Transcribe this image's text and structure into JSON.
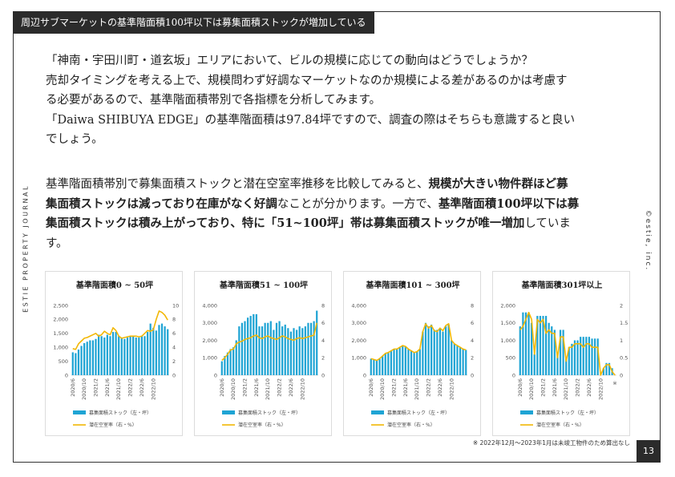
{
  "header": {
    "title": "周辺サブマーケットの基準階面積100坪以下は募集面積ストックが増加している"
  },
  "side": {
    "left": "ESTIE PROPERTY JOURNAL",
    "right": "©estie, inc."
  },
  "body": {
    "p1_lines": [
      "「神南・宇田川町・道玄坂」エリアにおいて、ビルの規模に応じての動向はどうでしょうか？",
      "売却タイミングを考える上で、規模問わず好調なマーケットなのか規模による差があるのかは考慮す",
      "る必要があるので、基準階面積帯別で各指標を分析してみます。",
      "「Daiwa SHIBUYA EDGE」の基準階面積は97.84坪ですので、調査の際はそちらも意識すると良い",
      "でしょう。"
    ],
    "p2": {
      "l1_a": "基準階面積帯別で募集面積ストックと潜在空室率推移を比較してみると、",
      "l1_b": "規模が大きい物件群ほど募",
      "l2_a": "集面積ストックは減っており在庫がなく好調",
      "l2_b": "なことが分かります。一方で、",
      "l2_c": "基準階面積100坪以下は募",
      "l3_a": "集面積ストックは積み上がっており、特に「51~100坪」帯は募集面積ストックが唯一増加",
      "l3_b": "していま",
      "l4": "す。"
    }
  },
  "legend": {
    "bar": "募集面積ストック（左・坪）",
    "line": "潜在空室率（右・%）"
  },
  "footnote": "※ 2022年12月～2023年1月は未竣工物件のため算出なし",
  "page_number": "13",
  "colors": {
    "bar": "#1fa4d4",
    "line": "#f2b705"
  },
  "chart_data": [
    {
      "type": "bar",
      "title": "基準階面積0 ~ 50坪",
      "x_ticks": [
        "2020/6",
        "2020/10",
        "2021/2",
        "2021/6",
        "2021/10",
        "2022/2",
        "2022/6",
        "2022/10"
      ],
      "y_left": {
        "range": [
          0,
          2500
        ],
        "ticks": [
          "0",
          "500",
          "1,000",
          "1,500",
          "2,000",
          "2,500"
        ]
      },
      "y_right": {
        "range": [
          0,
          10
        ],
        "ticks": [
          "0",
          "2",
          "4",
          "6",
          "8",
          "10"
        ]
      },
      "series": [
        {
          "name": "募集面積ストック（左・坪）",
          "type": "bar",
          "values": [
            820,
            790,
            920,
            1050,
            1150,
            1200,
            1250,
            1250,
            1300,
            1450,
            1400,
            1350,
            1450,
            1400,
            1550,
            1550,
            1400,
            1350,
            1300,
            1350,
            1400,
            1400,
            1350,
            1350,
            1400,
            1400,
            1550,
            1850,
            1700,
            1600,
            1800,
            1850,
            1750,
            1650
          ]
        },
        {
          "name": "潜在空室率（右・%）",
          "type": "line",
          "values": [
            3.8,
            3.7,
            4.5,
            4.9,
            5.3,
            5.4,
            5.6,
            5.8,
            6.0,
            5.6,
            5.8,
            6.3,
            6.0,
            5.8,
            6.8,
            6.4,
            5.6,
            5.3,
            5.4,
            5.5,
            5.6,
            5.6,
            5.6,
            5.5,
            5.6,
            6.0,
            6.4,
            6.3,
            6.5,
            8.0,
            9.2,
            9.0,
            8.6,
            7.9
          ]
        }
      ]
    },
    {
      "type": "bar",
      "title": "基準階面積51 ~ 100坪",
      "x_ticks": [
        "2020/6",
        "2020/10",
        "2021/2",
        "2021/6",
        "2021/10",
        "2022/2",
        "2022/6",
        "2022/10"
      ],
      "y_left": {
        "range": [
          0,
          4000
        ],
        "ticks": [
          "0",
          "1,000",
          "2,000",
          "3,000",
          "4,000"
        ]
      },
      "y_right": {
        "range": [
          0,
          8
        ],
        "ticks": [
          "0",
          "2",
          "4",
          "6",
          "8"
        ]
      },
      "series": [
        {
          "name": "募集面積ストック（左・坪）",
          "type": "bar",
          "values": [
            800,
            1100,
            1300,
            1500,
            1600,
            2000,
            2800,
            3000,
            3100,
            3300,
            3400,
            3500,
            3500,
            2800,
            2800,
            3000,
            3000,
            3100,
            2600,
            3000,
            3100,
            2800,
            2900,
            2700,
            2500,
            2700,
            2600,
            2800,
            2700,
            2800,
            3000,
            3000,
            3100,
            3700
          ]
        },
        {
          "name": "潜在空室率（右・%）",
          "type": "line",
          "values": [
            1.7,
            2.0,
            2.4,
            2.9,
            3.0,
            3.6,
            3.8,
            3.9,
            4.1,
            4.2,
            4.3,
            4.5,
            4.6,
            4.3,
            4.2,
            4.4,
            4.5,
            4.3,
            4.2,
            4.1,
            4.3,
            4.5,
            4.4,
            4.2,
            4.1,
            4.0,
            4.2,
            4.3,
            4.2,
            4.3,
            4.4,
            4.5,
            4.6,
            6.0
          ]
        }
      ]
    },
    {
      "type": "bar",
      "title": "基準階面積101 ~ 300坪",
      "x_ticks": [
        "2020/6",
        "2020/10",
        "2021/2",
        "2021/6",
        "2021/10",
        "2022/2",
        "2022/6",
        "2022/10"
      ],
      "y_left": {
        "range": [
          0,
          4000
        ],
        "ticks": [
          "0",
          "1,000",
          "2,000",
          "3,000",
          "4,000"
        ]
      },
      "y_right": {
        "range": [
          0,
          8
        ],
        "ticks": [
          "0",
          "2",
          "4",
          "6",
          "8"
        ]
      },
      "series": [
        {
          "name": "募集面積ストック（左・坪）",
          "type": "bar",
          "values": [
            950,
            900,
            850,
            950,
            1100,
            1250,
            1300,
            1400,
            1500,
            1500,
            1600,
            1700,
            1650,
            1500,
            1400,
            1300,
            1350,
            1500,
            2500,
            3000,
            2800,
            2900,
            2600,
            2600,
            2700,
            2500,
            2800,
            2900,
            2000,
            1800,
            1700,
            1600,
            1500,
            1450
          ]
        },
        {
          "name": "潜在空室率（右・%）",
          "type": "line",
          "values": [
            1.9,
            1.8,
            1.7,
            1.9,
            2.2,
            2.5,
            2.6,
            2.8,
            3.0,
            3.0,
            3.2,
            3.4,
            3.3,
            3.0,
            2.8,
            2.6,
            2.7,
            3.0,
            5.0,
            5.9,
            5.4,
            5.7,
            5.1,
            5.0,
            5.4,
            5.1,
            5.7,
            5.9,
            4.0,
            3.6,
            3.4,
            3.2,
            3.0,
            2.9
          ]
        }
      ]
    },
    {
      "type": "bar",
      "title": "基準階面積301坪以上",
      "x_ticks": [
        "2020/6",
        "2020/10",
        "2021/2",
        "2021/6",
        "2021/10",
        "2022/2",
        "2022/6",
        "2022/10"
      ],
      "y_left": {
        "range": [
          0,
          2000
        ],
        "ticks": [
          "0",
          "500",
          "1,000",
          "1,500",
          "2,000"
        ]
      },
      "y_right": {
        "range": [
          0,
          2
        ],
        "ticks": [
          "0",
          "0.5",
          "1",
          "1.5",
          "2"
        ]
      },
      "series": [
        {
          "name": "募集面積ストック（左・坪）",
          "type": "bar",
          "values": [
            1400,
            1800,
            1800,
            1800,
            1500,
            600,
            1700,
            1700,
            1700,
            1700,
            1500,
            1400,
            1300,
            600,
            1300,
            1300,
            500,
            800,
            900,
            1000,
            1000,
            1100,
            1100,
            1100,
            1100,
            1050,
            1050,
            1050,
            0,
            200,
            350,
            350,
            200,
            0
          ]
        },
        {
          "name": "潜在空室率（右・%）",
          "type": "line",
          "values": [
            1.3,
            1.4,
            1.6,
            1.8,
            1.6,
            0.6,
            1.6,
            1.5,
            1.6,
            1.2,
            1.3,
            1.2,
            1.2,
            0.5,
            1.1,
            1.1,
            0.4,
            0.8,
            0.8,
            0.9,
            0.9,
            0.9,
            0.8,
            0.9,
            0.9,
            0.8,
            0.8,
            0.8,
            0.0,
            0.2,
            0.3,
            0.3,
            0.1,
            0.0
          ]
        }
      ]
    }
  ]
}
